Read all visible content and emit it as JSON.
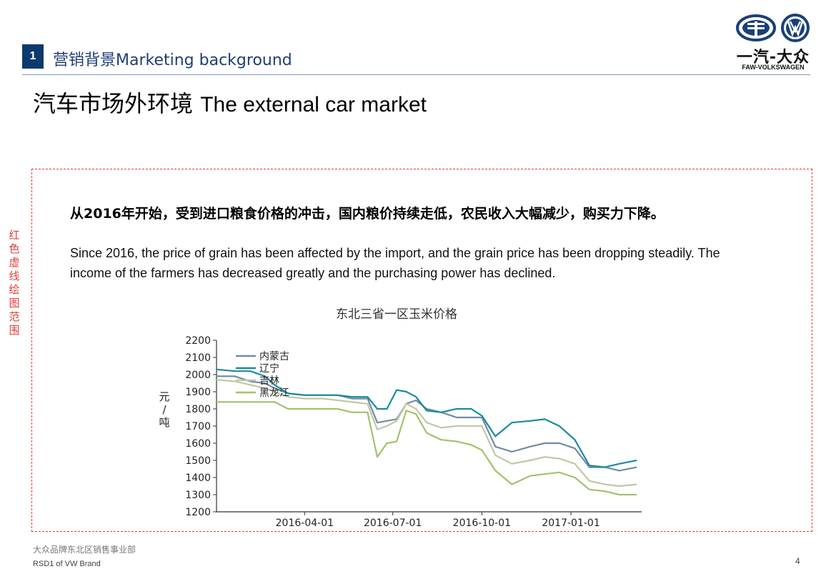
{
  "header": {
    "section_number": "1",
    "section_title": "营销背景Marketing background",
    "logo_cn": "一汽-大众",
    "logo_en": "FAW-VOLKSWAGEN"
  },
  "page_title": {
    "cn": "汽车市场外环境",
    "en": "The external car market"
  },
  "side_note": "红色虚线绘图范围",
  "body": {
    "cn": "从2016年开始，受到进口粮食价格的冲击，国内粮价持续走低，农民收入大幅减少，购买力下降。",
    "en": "Since 2016, the price of grain has been affected by the import, and the grain price has been dropping steadily. The income of the farmers has decreased greatly and the purchasing power has declined."
  },
  "chart_data": {
    "type": "line",
    "title": "东北三省一区玉米价格",
    "ylabel": "元/吨",
    "xlabel": "",
    "ylim": [
      1200,
      2200
    ],
    "yticks": [
      2200,
      2100,
      2000,
      1900,
      1800,
      1700,
      1600,
      1500,
      1400,
      1300,
      1200
    ],
    "xlim": [
      "2016-01-01",
      "2017-03-15"
    ],
    "xticks": [
      "2016-04-01",
      "2016-07-01",
      "2016-10-01",
      "2017-01-01"
    ],
    "legend_position": "top-left",
    "grid": false,
    "series": [
      {
        "name": "内蒙古",
        "color": "#6f8ca4",
        "x": [
          "2016-01-01",
          "2016-01-20",
          "2016-02-05",
          "2016-02-20",
          "2016-03-01",
          "2016-03-15",
          "2016-04-01",
          "2016-04-20",
          "2016-05-05",
          "2016-05-20",
          "2016-06-05",
          "2016-06-15",
          "2016-06-25",
          "2016-07-05",
          "2016-07-15",
          "2016-07-25",
          "2016-08-05",
          "2016-08-20",
          "2016-09-05",
          "2016-09-20",
          "2016-10-01",
          "2016-10-15",
          "2016-11-01",
          "2016-11-20",
          "2016-12-05",
          "2016-12-20",
          "2017-01-05",
          "2017-01-20",
          "2017-02-05",
          "2017-02-20",
          "2017-03-10"
        ],
        "y": [
          1990,
          1990,
          1960,
          1950,
          1920,
          1890,
          1880,
          1880,
          1880,
          1860,
          1860,
          1720,
          1730,
          1740,
          1830,
          1850,
          1800,
          1780,
          1750,
          1750,
          1750,
          1580,
          1550,
          1580,
          1600,
          1600,
          1570,
          1460,
          1460,
          1440,
          1460
        ]
      },
      {
        "name": "辽宁",
        "color": "#1b8aa0",
        "x": [
          "2016-01-01",
          "2016-01-20",
          "2016-02-05",
          "2016-02-20",
          "2016-03-01",
          "2016-03-15",
          "2016-04-01",
          "2016-04-20",
          "2016-05-05",
          "2016-05-20",
          "2016-06-05",
          "2016-06-15",
          "2016-06-25",
          "2016-07-05",
          "2016-07-15",
          "2016-07-25",
          "2016-08-05",
          "2016-08-20",
          "2016-09-05",
          "2016-09-20",
          "2016-10-01",
          "2016-10-15",
          "2016-11-01",
          "2016-11-20",
          "2016-12-05",
          "2016-12-20",
          "2017-01-05",
          "2017-01-20",
          "2017-02-05",
          "2017-02-20",
          "2017-03-10"
        ],
        "y": [
          2030,
          2020,
          2020,
          1990,
          1940,
          1890,
          1880,
          1880,
          1880,
          1870,
          1870,
          1800,
          1800,
          1910,
          1900,
          1870,
          1790,
          1780,
          1800,
          1800,
          1760,
          1640,
          1720,
          1730,
          1740,
          1700,
          1620,
          1470,
          1460,
          1480,
          1500
        ]
      },
      {
        "name": "吉林",
        "color": "#c2c7a6",
        "x": [
          "2016-01-01",
          "2016-01-20",
          "2016-02-05",
          "2016-02-20",
          "2016-03-01",
          "2016-03-15",
          "2016-04-01",
          "2016-04-20",
          "2016-05-05",
          "2016-05-20",
          "2016-06-05",
          "2016-06-15",
          "2016-06-25",
          "2016-07-05",
          "2016-07-15",
          "2016-07-25",
          "2016-08-05",
          "2016-08-20",
          "2016-09-05",
          "2016-09-20",
          "2016-10-01",
          "2016-10-15",
          "2016-11-01",
          "2016-11-20",
          "2016-12-05",
          "2016-12-20",
          "2017-01-05",
          "2017-01-20",
          "2017-02-05",
          "2017-02-20",
          "2017-03-10"
        ],
        "y": [
          1970,
          1960,
          1940,
          1920,
          1900,
          1870,
          1860,
          1860,
          1850,
          1840,
          1830,
          1680,
          1700,
          1730,
          1830,
          1800,
          1720,
          1690,
          1700,
          1700,
          1700,
          1530,
          1480,
          1500,
          1520,
          1510,
          1480,
          1380,
          1360,
          1350,
          1360
        ]
      },
      {
        "name": "黑龙江",
        "color": "#a3c26a",
        "x": [
          "2016-01-01",
          "2016-01-20",
          "2016-02-05",
          "2016-02-20",
          "2016-03-01",
          "2016-03-15",
          "2016-04-01",
          "2016-04-20",
          "2016-05-05",
          "2016-05-20",
          "2016-06-05",
          "2016-06-15",
          "2016-06-25",
          "2016-07-05",
          "2016-07-15",
          "2016-07-25",
          "2016-08-05",
          "2016-08-20",
          "2016-09-05",
          "2016-09-20",
          "2016-10-01",
          "2016-10-15",
          "2016-11-01",
          "2016-11-20",
          "2016-12-05",
          "2016-12-20",
          "2017-01-05",
          "2017-01-20",
          "2017-02-05",
          "2017-02-20",
          "2017-03-10"
        ],
        "y": [
          1840,
          1840,
          1840,
          1840,
          1840,
          1800,
          1800,
          1800,
          1800,
          1780,
          1780,
          1520,
          1600,
          1610,
          1790,
          1770,
          1660,
          1620,
          1610,
          1590,
          1560,
          1440,
          1360,
          1410,
          1420,
          1430,
          1400,
          1330,
          1320,
          1300,
          1300
        ]
      }
    ]
  },
  "footer": {
    "dept_cn": "大众品牌东北区销售事业部",
    "dept_en": "RSD1 of VW Brand",
    "page": "4"
  }
}
